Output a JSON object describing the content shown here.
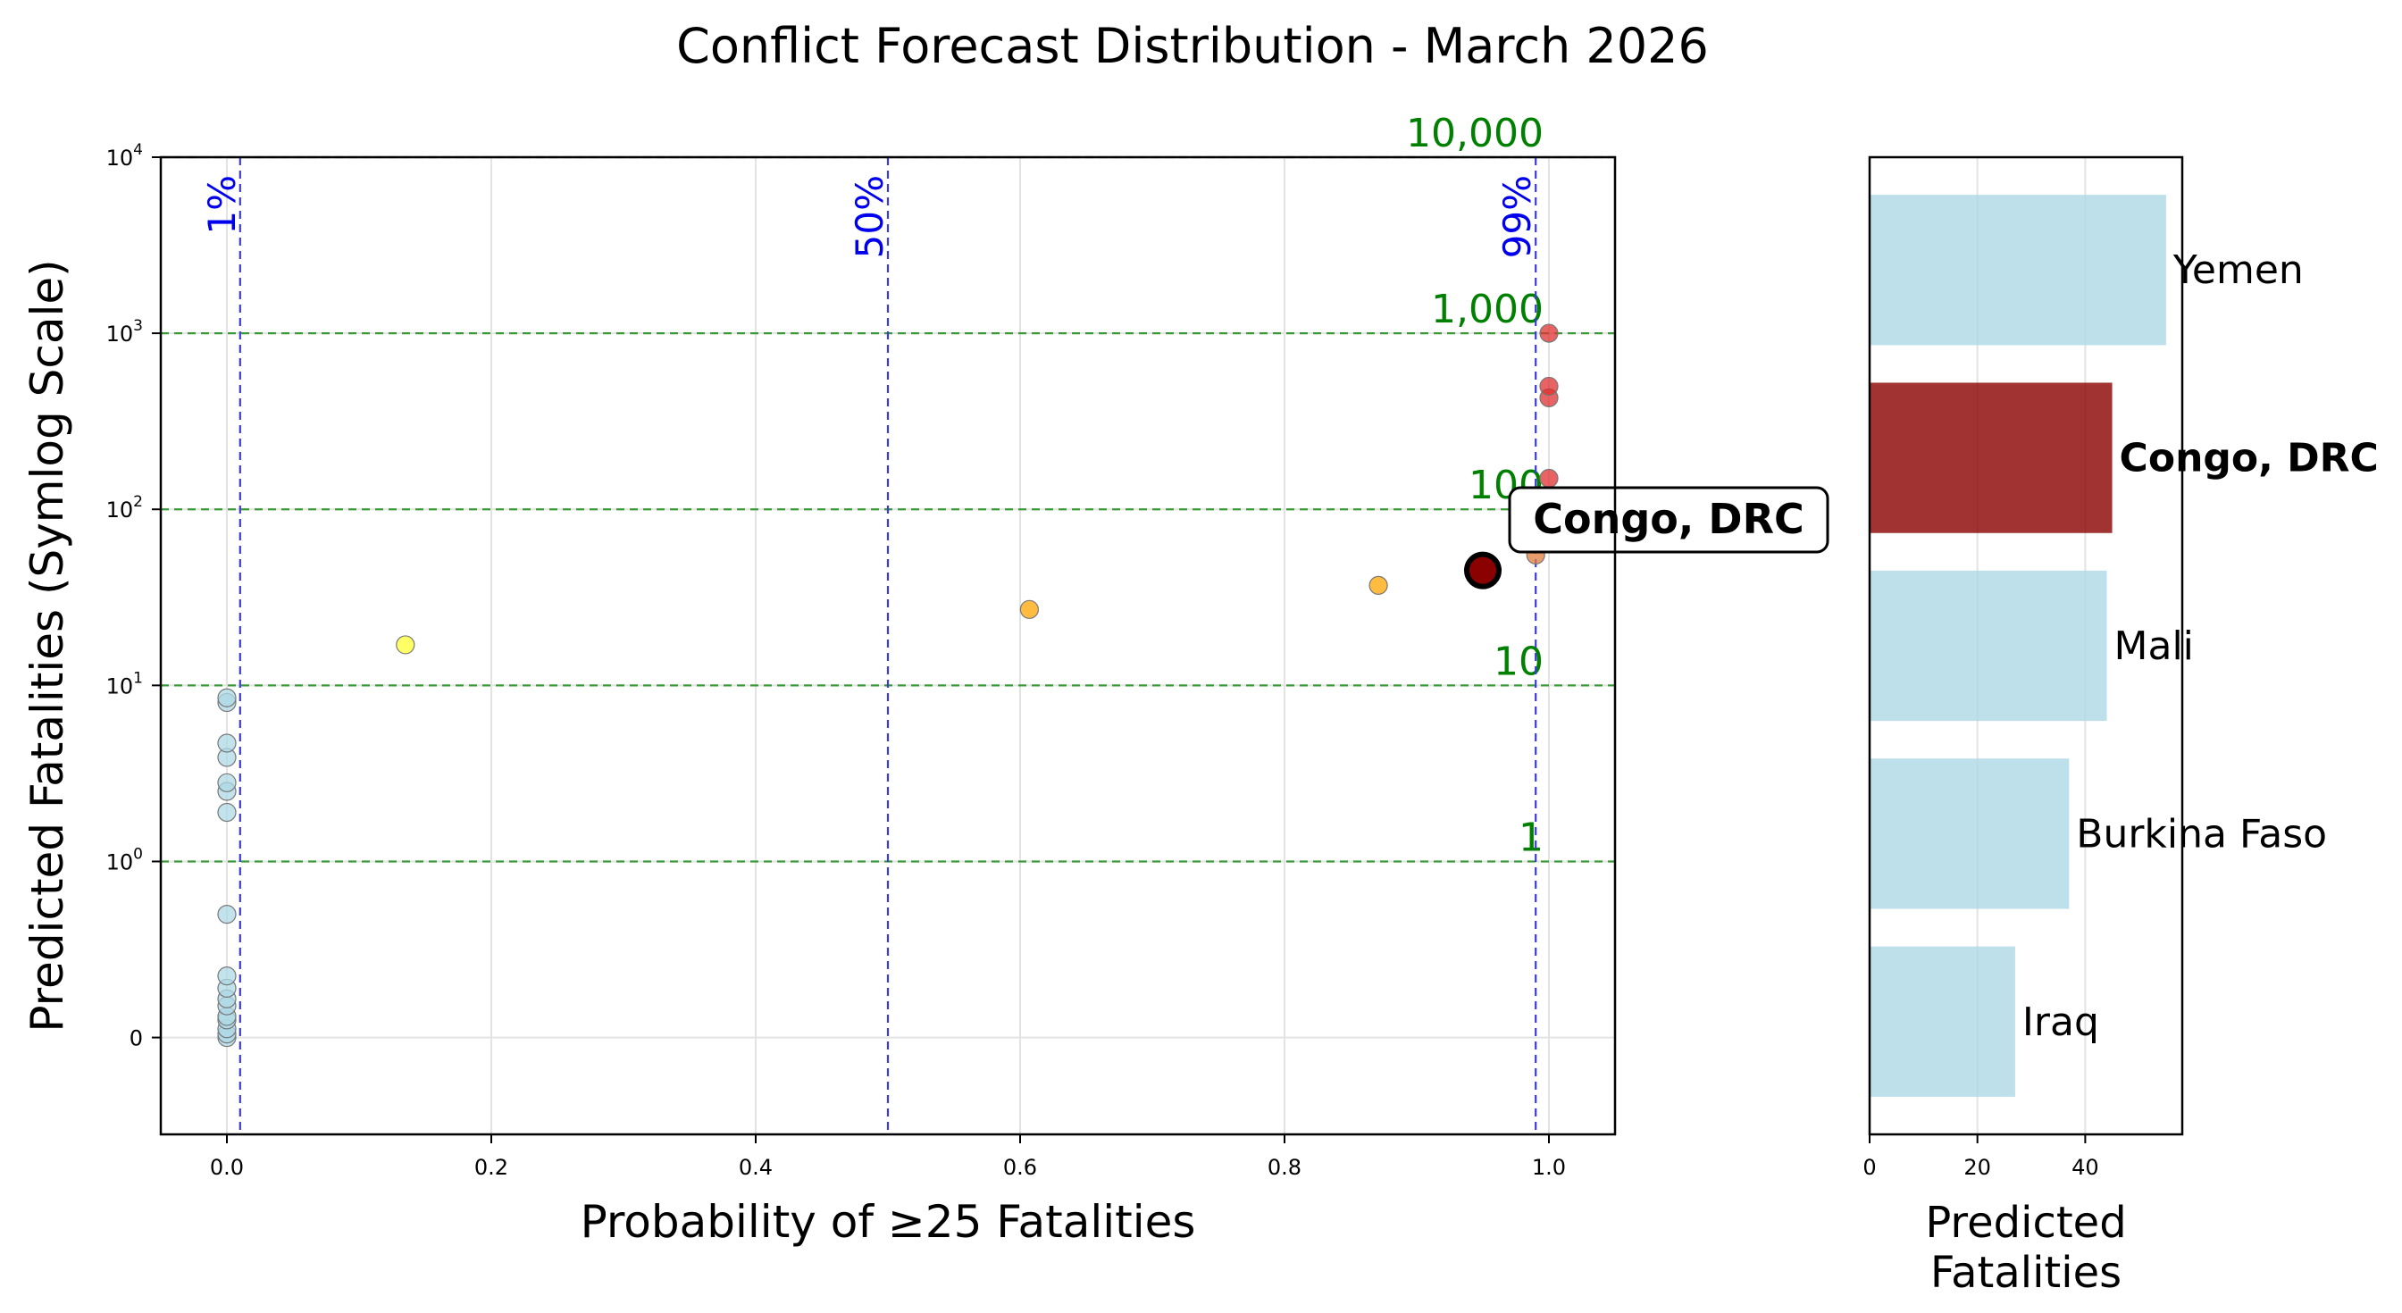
{
  "chart_data": [
    {
      "type": "scatter",
      "title": "Conflict Forecast Distribution - March 2026",
      "xlabel": "Probability of ≥25 Fatalities",
      "ylabel": "Predicted Fatalities (Symlog Scale)",
      "yscale": "symlog",
      "xlim": [
        -0.05,
        1.05
      ],
      "ylim": [
        -0.55,
        10000
      ],
      "grid": true,
      "x_ticks": [
        0.0,
        0.2,
        0.4,
        0.6,
        0.8,
        1.0
      ],
      "x_tick_labels": [
        "0.0",
        "0.2",
        "0.4",
        "0.6",
        "0.8",
        "1.0"
      ],
      "y_ticks": [
        {
          "value": 0,
          "base": "0",
          "exp": ""
        },
        {
          "value": 1,
          "base": "10",
          "exp": "0"
        },
        {
          "value": 10,
          "base": "10",
          "exp": "1"
        },
        {
          "value": 100,
          "base": "10",
          "exp": "2"
        },
        {
          "value": 1000,
          "base": "10",
          "exp": "3"
        },
        {
          "value": 10000,
          "base": "10",
          "exp": "4"
        }
      ],
      "probability_lines": [
        {
          "x": 0.01,
          "label": "1%"
        },
        {
          "x": 0.5,
          "label": "50%"
        },
        {
          "x": 0.99,
          "label": "99%"
        }
      ],
      "fatality_lines": [
        {
          "y": 1,
          "label": "1"
        },
        {
          "y": 10,
          "label": "10"
        },
        {
          "y": 100,
          "label": "100"
        },
        {
          "y": 1000,
          "label": "1,000"
        },
        {
          "y": 10000,
          "label": "10,000"
        }
      ],
      "points": [
        {
          "x": 0.0,
          "y": 0.0,
          "color": "#add8e6"
        },
        {
          "x": 0.0,
          "y": 0.02,
          "color": "#add8e6"
        },
        {
          "x": 0.0,
          "y": 0.05,
          "color": "#add8e6"
        },
        {
          "x": 0.0,
          "y": 0.1,
          "color": "#add8e6"
        },
        {
          "x": 0.0,
          "y": 0.12,
          "color": "#add8e6"
        },
        {
          "x": 0.0,
          "y": 0.18,
          "color": "#add8e6"
        },
        {
          "x": 0.0,
          "y": 0.22,
          "color": "#add8e6"
        },
        {
          "x": 0.0,
          "y": 0.28,
          "color": "#add8e6"
        },
        {
          "x": 0.0,
          "y": 0.35,
          "color": "#add8e6"
        },
        {
          "x": 0.0,
          "y": 0.7,
          "color": "#add8e6"
        },
        {
          "x": 0.0,
          "y": 1.9,
          "color": "#add8e6"
        },
        {
          "x": 0.0,
          "y": 2.5,
          "color": "#add8e6"
        },
        {
          "x": 0.0,
          "y": 2.8,
          "color": "#add8e6"
        },
        {
          "x": 0.0,
          "y": 3.9,
          "color": "#add8e6"
        },
        {
          "x": 0.0,
          "y": 4.7,
          "color": "#add8e6"
        },
        {
          "x": 0.0,
          "y": 8.0,
          "color": "#add8e6"
        },
        {
          "x": 0.0,
          "y": 8.5,
          "color": "#add8e6"
        },
        {
          "x": 0.135,
          "y": 17,
          "color": "#ffff33"
        },
        {
          "x": 0.607,
          "y": 27,
          "color": "#ffa500"
        },
        {
          "x": 0.871,
          "y": 37,
          "color": "#ffa500"
        },
        {
          "x": 0.99,
          "y": 55,
          "color": "#e07b39"
        },
        {
          "x": 1.0,
          "y": 150,
          "color": "#e03030"
        },
        {
          "x": 1.0,
          "y": 430,
          "color": "#e03030"
        },
        {
          "x": 1.0,
          "y": 500,
          "color": "#e03030"
        },
        {
          "x": 1.0,
          "y": 1000,
          "color": "#e03030"
        }
      ],
      "highlight": {
        "label": "Congo, DRC",
        "x": 0.95,
        "y": 45,
        "color": "#8b0000"
      }
    },
    {
      "type": "bar",
      "orientation": "horizontal",
      "xlabel": "Predicted\nFatalities",
      "xlim": [
        0,
        58
      ],
      "x_ticks": [
        0,
        20,
        40
      ],
      "categories": [
        "Yemen",
        "Congo, DRC",
        "Mali",
        "Burkina Faso",
        "Iraq"
      ],
      "values": [
        55,
        45,
        44,
        37,
        27
      ],
      "highlight": "Congo, DRC",
      "colors": {
        "default": "#add8e6",
        "highlight": "#8b0000"
      }
    }
  ]
}
